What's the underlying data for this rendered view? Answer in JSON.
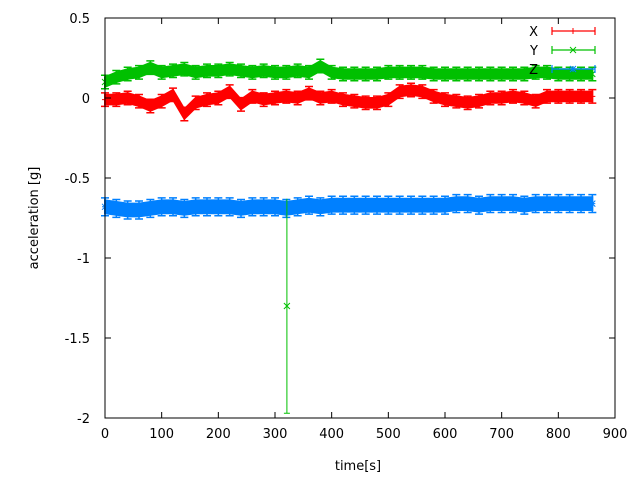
{
  "chart_data": {
    "type": "scatter",
    "title": "",
    "xlabel": "time[s]",
    "ylabel": "acceleration [g]",
    "xlim": [
      0,
      900
    ],
    "ylim": [
      -2,
      0.5
    ],
    "xticks": [
      "0",
      "100",
      "200",
      "300",
      "400",
      "500",
      "600",
      "700",
      "800",
      "900"
    ],
    "yticks": [
      "-2",
      "-1.5",
      "-1",
      "-0.5",
      "0",
      "0.5"
    ],
    "grid": false,
    "legend_position": "top-right",
    "x": [
      0,
      20,
      40,
      60,
      80,
      100,
      120,
      140,
      160,
      180,
      200,
      220,
      240,
      260,
      280,
      300,
      320,
      340,
      360,
      380,
      400,
      420,
      440,
      460,
      480,
      500,
      520,
      540,
      560,
      580,
      600,
      620,
      640,
      660,
      680,
      700,
      720,
      740,
      760,
      780,
      800,
      820,
      840,
      860
    ],
    "series": [
      {
        "name": "X",
        "color": "#ff0000",
        "marker": "plus",
        "error": 0.03,
        "values": [
          -0.01,
          -0.01,
          0.0,
          -0.02,
          -0.05,
          -0.02,
          0.02,
          -0.1,
          -0.03,
          -0.01,
          0.0,
          0.04,
          -0.04,
          0.01,
          -0.01,
          0.0,
          0.01,
          0.0,
          0.03,
          0.0,
          0.01,
          -0.01,
          -0.02,
          -0.03,
          -0.03,
          -0.01,
          0.04,
          0.05,
          0.04,
          0.01,
          -0.01,
          -0.02,
          -0.03,
          -0.02,
          0.0,
          0.0,
          0.01,
          0.0,
          -0.02,
          0.01,
          0.01,
          0.01,
          0.01,
          0.01
        ]
      },
      {
        "name": "Y",
        "color": "#00c000",
        "marker": "cross",
        "error": 0.03,
        "values": [
          0.1,
          0.13,
          0.15,
          0.16,
          0.19,
          0.16,
          0.17,
          0.18,
          0.16,
          0.17,
          0.17,
          0.18,
          0.17,
          0.16,
          0.17,
          0.16,
          0.16,
          0.17,
          0.16,
          0.2,
          0.16,
          0.15,
          0.15,
          0.15,
          0.15,
          0.16,
          0.16,
          0.16,
          0.16,
          0.15,
          0.15,
          0.15,
          0.15,
          0.15,
          0.15,
          0.15,
          0.15,
          0.15,
          0.16,
          0.16,
          0.15,
          0.15,
          0.15,
          0.15
        ]
      },
      {
        "name": "Z",
        "color": "#0080ff",
        "marker": "star",
        "error": 0.04,
        "values": [
          -0.68,
          -0.69,
          -0.7,
          -0.7,
          -0.69,
          -0.68,
          -0.68,
          -0.69,
          -0.68,
          -0.68,
          -0.68,
          -0.68,
          -0.69,
          -0.68,
          -0.68,
          -0.68,
          -0.69,
          -0.68,
          -0.67,
          -0.68,
          -0.67,
          -0.67,
          -0.67,
          -0.67,
          -0.67,
          -0.67,
          -0.67,
          -0.67,
          -0.67,
          -0.67,
          -0.67,
          -0.66,
          -0.66,
          -0.67,
          -0.66,
          -0.66,
          -0.66,
          -0.67,
          -0.66,
          -0.66,
          -0.66,
          -0.66,
          -0.66,
          -0.66
        ]
      }
    ],
    "outliers": [
      {
        "series": "Y",
        "x": 321,
        "y": -1.3,
        "error": 0.67,
        "color": "#00c000"
      }
    ]
  }
}
